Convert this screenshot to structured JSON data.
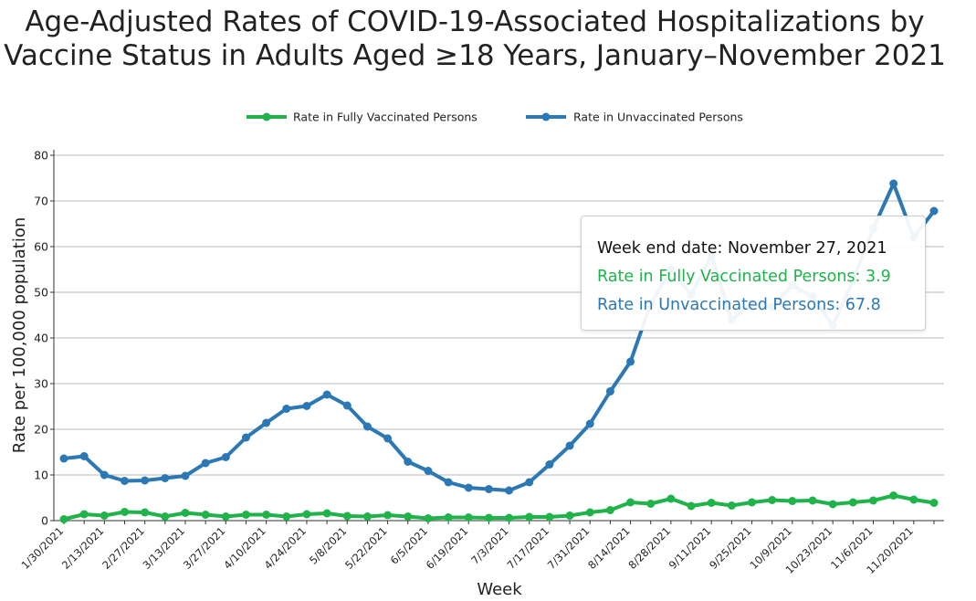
{
  "title_lines": [
    "Age-Adjusted Rates of COVID-19-Associated Hospitalizations by",
    "Vaccine Status in Adults Aged ≥18 Years, January–November 2021"
  ],
  "legend": [
    {
      "label": "Rate in Fully Vaccinated Persons",
      "color": "#1fb34a"
    },
    {
      "label": "Rate in Unvaccinated Persons",
      "color": "#2b78b5"
    }
  ],
  "tooltip": {
    "header": "Week end date: November 27, 2021",
    "vaccinated": "Rate in Fully Vaccinated Persons: 3.9",
    "unvaccinated": "Rate in Unvaccinated Persons: 67.8"
  },
  "chart_data": {
    "type": "line",
    "title": "Age-Adjusted Rates of COVID-19-Associated Hospitalizations by Vaccine Status in Adults Aged ≥18 Years, January–November 2021",
    "xlabel": "Week",
    "ylabel": "Rate per 100,000 population",
    "ylim": [
      0,
      80
    ],
    "yticks": [
      0,
      10,
      20,
      30,
      40,
      50,
      60,
      70,
      80
    ],
    "grid": true,
    "legend_position": "top",
    "x": [
      "1/30/2021",
      "2/6/2021",
      "2/13/2021",
      "2/20/2021",
      "2/27/2021",
      "3/6/2021",
      "3/13/2021",
      "3/20/2021",
      "3/27/2021",
      "4/3/2021",
      "4/10/2021",
      "4/17/2021",
      "4/24/2021",
      "5/1/2021",
      "5/8/2021",
      "5/15/2021",
      "5/22/2021",
      "5/29/2021",
      "6/5/2021",
      "6/12/2021",
      "6/19/2021",
      "6/26/2021",
      "7/3/2021",
      "7/10/2021",
      "7/17/2021",
      "7/24/2021",
      "7/31/2021",
      "8/7/2021",
      "8/14/2021",
      "8/21/2021",
      "8/28/2021",
      "9/4/2021",
      "9/11/2021",
      "9/18/2021",
      "9/25/2021",
      "10/2/2021",
      "10/9/2021",
      "10/16/2021",
      "10/23/2021",
      "10/30/2021",
      "11/6/2021",
      "11/13/2021",
      "11/20/2021",
      "11/27/2021"
    ],
    "xtick_labels": [
      "1/30/2021",
      "2/13/2021",
      "2/27/2021",
      "3/13/2021",
      "3/27/2021",
      "4/10/2021",
      "4/24/2021",
      "5/8/2021",
      "5/22/2021",
      "6/5/2021",
      "6/19/2021",
      "7/3/2021",
      "7/17/2021",
      "7/31/2021",
      "8/14/2021",
      "8/28/2021",
      "9/11/2021",
      "9/25/2021",
      "10/9/2021",
      "10/23/2021",
      "11/6/2021",
      "11/20/2021"
    ],
    "series": [
      {
        "name": "Rate in Fully Vaccinated Persons",
        "color": "#1fb34a",
        "values": [
          0.3,
          1.4,
          1.1,
          1.9,
          1.8,
          0.9,
          1.7,
          1.3,
          0.9,
          1.3,
          1.3,
          0.9,
          1.4,
          1.6,
          1.0,
          0.9,
          1.2,
          0.9,
          0.5,
          0.7,
          0.7,
          0.6,
          0.6,
          0.8,
          0.8,
          1.1,
          1.8,
          2.3,
          4.0,
          3.7,
          4.8,
          3.2,
          3.9,
          3.3,
          4.0,
          4.5,
          4.3,
          4.4,
          3.6,
          4.0,
          4.4,
          5.5,
          4.6,
          3.9
        ]
      },
      {
        "name": "Rate in Unvaccinated Persons",
        "color": "#2b78b5",
        "values": [
          13.6,
          14.1,
          10.0,
          8.7,
          8.8,
          9.3,
          9.8,
          12.6,
          13.9,
          18.2,
          21.4,
          24.5,
          25.1,
          27.6,
          25.2,
          20.6,
          18.0,
          12.9,
          10.9,
          8.4,
          7.2,
          6.9,
          6.6,
          8.4,
          12.3,
          16.4,
          21.2,
          28.3,
          34.8,
          47.5,
          55.0,
          49.5,
          58.0,
          44.0,
          47.5,
          46.8,
          51.5,
          49.0,
          42.8,
          52.5,
          64.0,
          73.8,
          62.0,
          67.8
        ]
      }
    ]
  }
}
